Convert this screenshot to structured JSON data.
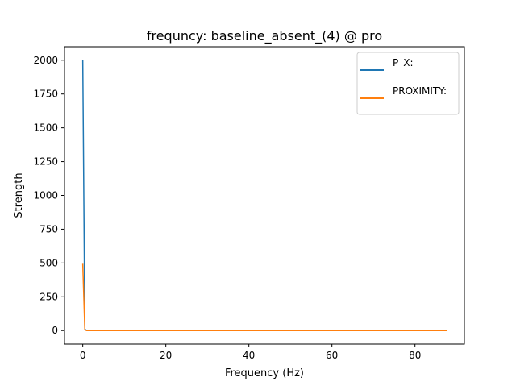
{
  "chart_data": {
    "type": "line",
    "title": "frequncy: baseline_absent_(4) @ pro",
    "xlabel": "Frequency (Hz)",
    "ylabel": "Strength",
    "xlim": [
      -4.4,
      91.9
    ],
    "ylim": [
      -100,
      2100
    ],
    "xticks": [
      0,
      20,
      40,
      60,
      80
    ],
    "yticks": [
      0,
      250,
      500,
      750,
      1000,
      1250,
      1500,
      1750,
      2000
    ],
    "legend_position": "top-right",
    "grid": false,
    "series": [
      {
        "name": "P_X:",
        "color": "#1f77b4",
        "x": [
          0,
          0.5,
          1,
          87.5
        ],
        "y": [
          2000,
          10,
          0,
          0
        ]
      },
      {
        "name": "PROXIMITY:",
        "color": "#ff7f0e",
        "x": [
          0,
          0.5,
          1,
          87.5
        ],
        "y": [
          490,
          5,
          0,
          0
        ]
      }
    ]
  }
}
